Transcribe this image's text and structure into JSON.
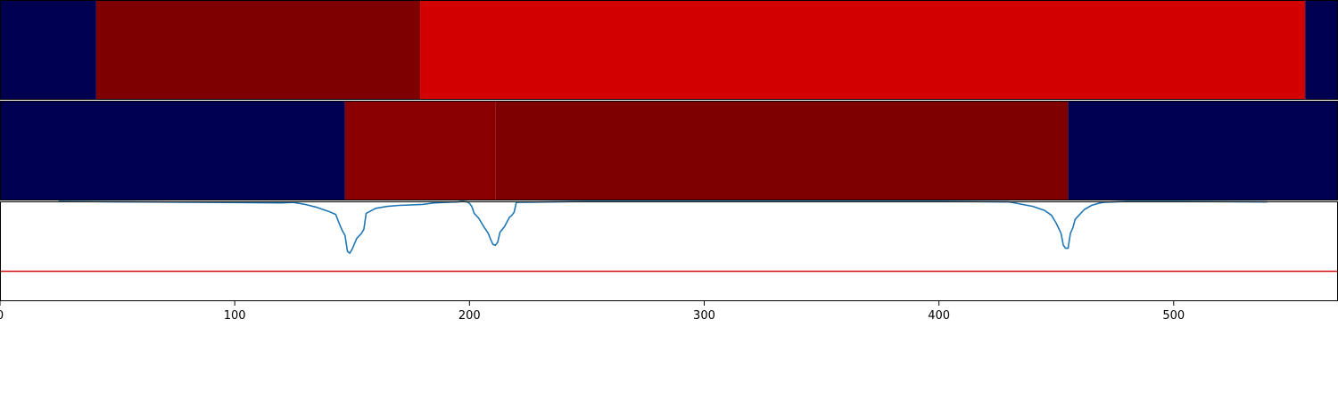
{
  "chart_data": [
    {
      "type": "heatmap",
      "xlim": [
        0,
        570
      ],
      "segments": [
        {
          "start": 0,
          "end": 41,
          "color": "#000050"
        },
        {
          "start": 41,
          "end": 179,
          "color": "#7e0000"
        },
        {
          "start": 179,
          "end": 556,
          "color": "#d20000"
        },
        {
          "start": 556,
          "end": 570,
          "color": "#000050"
        }
      ]
    },
    {
      "type": "heatmap",
      "xlim": [
        0,
        570
      ],
      "segments": [
        {
          "start": 0,
          "end": 147,
          "color": "#000050"
        },
        {
          "start": 147,
          "end": 211,
          "color": "#8a0000"
        },
        {
          "start": 211,
          "end": 455,
          "color": "#7e0000"
        },
        {
          "start": 455,
          "end": 570,
          "color": "#000050"
        }
      ]
    },
    {
      "type": "line",
      "xlim": [
        0,
        570
      ],
      "ylim": [
        -1.0,
        0.0
      ],
      "xticks": [
        0,
        100,
        200,
        300,
        400,
        500
      ],
      "threshold": {
        "y": -0.7,
        "color": "#d62728"
      },
      "series": [
        {
          "color": "#1f77b4",
          "x": [
            25,
            60,
            90,
            120,
            125,
            130,
            135,
            140,
            143,
            145,
            146,
            147,
            148,
            149,
            150,
            152,
            154,
            155,
            156,
            160,
            165,
            170,
            180,
            185,
            190,
            195,
            197,
            199,
            200,
            201,
            202,
            204,
            206,
            208,
            209,
            210,
            211,
            212,
            213,
            215,
            217,
            218,
            219,
            220,
            250,
            300,
            350,
            400,
            430,
            440,
            445,
            448,
            450,
            452,
            453,
            454,
            455,
            456,
            457,
            458,
            460,
            462,
            465,
            468,
            470,
            480,
            500,
            540
          ],
          "y": [
            0.0,
            -0.005,
            -0.01,
            -0.015,
            -0.01,
            -0.03,
            -0.06,
            -0.1,
            -0.13,
            -0.25,
            -0.3,
            -0.34,
            -0.5,
            -0.52,
            -0.48,
            -0.37,
            -0.32,
            -0.28,
            -0.12,
            -0.07,
            -0.05,
            -0.04,
            -0.03,
            -0.015,
            -0.01,
            -0.005,
            0.0,
            -0.005,
            -0.02,
            -0.05,
            -0.12,
            -0.17,
            -0.25,
            -0.32,
            -0.38,
            -0.43,
            -0.44,
            -0.41,
            -0.31,
            -0.25,
            -0.16,
            -0.14,
            -0.11,
            -0.01,
            0.0,
            0.0,
            0.0,
            0.0,
            -0.005,
            -0.05,
            -0.09,
            -0.14,
            -0.22,
            -0.32,
            -0.44,
            -0.47,
            -0.47,
            -0.32,
            -0.27,
            -0.18,
            -0.13,
            -0.08,
            -0.04,
            -0.02,
            -0.01,
            0.0,
            0.0,
            -0.005
          ]
        }
      ]
    }
  ]
}
